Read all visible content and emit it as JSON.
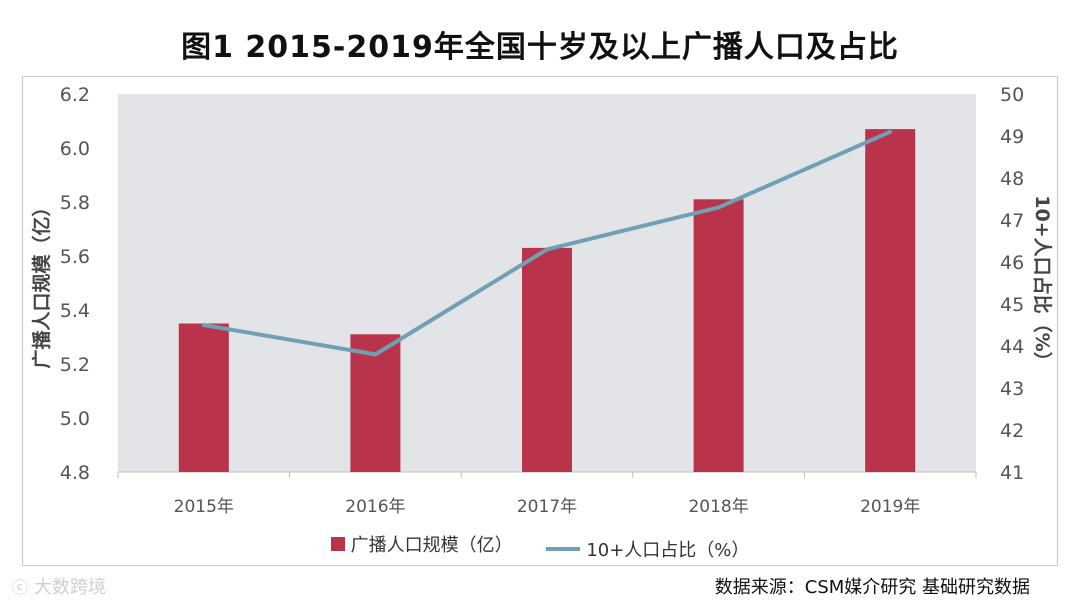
{
  "title": "图1 2015-2019年全国十岁及以上广播人口及占比",
  "legend": {
    "bar_label": "广播人口规模（亿）",
    "line_label": "10+人口占比（%）"
  },
  "source": "数据来源：CSM媒介研究 基础研究数据",
  "watermark": {
    "logo": "ⓒ",
    "text": "大数跨境"
  },
  "colors": {
    "bar": "#b9344a",
    "line": "#6fa0b5",
    "plot_bg": "#e3e4e8",
    "grid": "#ffffff"
  },
  "chart_data": {
    "type": "bar",
    "categories": [
      "2015年",
      "2016年",
      "2017年",
      "2018年",
      "2019年"
    ],
    "series": [
      {
        "name": "广播人口规模（亿）",
        "axis": "left",
        "mark": "bar",
        "values": [
          5.35,
          5.31,
          5.63,
          5.81,
          6.07
        ]
      },
      {
        "name": "10+人口占比（%）",
        "axis": "right",
        "mark": "line",
        "values": [
          44.5,
          43.8,
          46.3,
          47.3,
          49.1
        ]
      }
    ],
    "ylabel": "广播人口规模（亿）",
    "ylabel_right": "10+人口占比（%）",
    "ylim": [
      4.8,
      6.2
    ],
    "yticks": [
      "4.8",
      "5.0",
      "5.2",
      "5.4",
      "5.6",
      "5.8",
      "6.0",
      "6.2"
    ],
    "ylim_right": [
      41,
      50
    ],
    "yticks_right": [
      "41",
      "42",
      "43",
      "44",
      "45",
      "46",
      "47",
      "48",
      "49",
      "50"
    ],
    "legend_position": "bottom",
    "grid": false
  }
}
